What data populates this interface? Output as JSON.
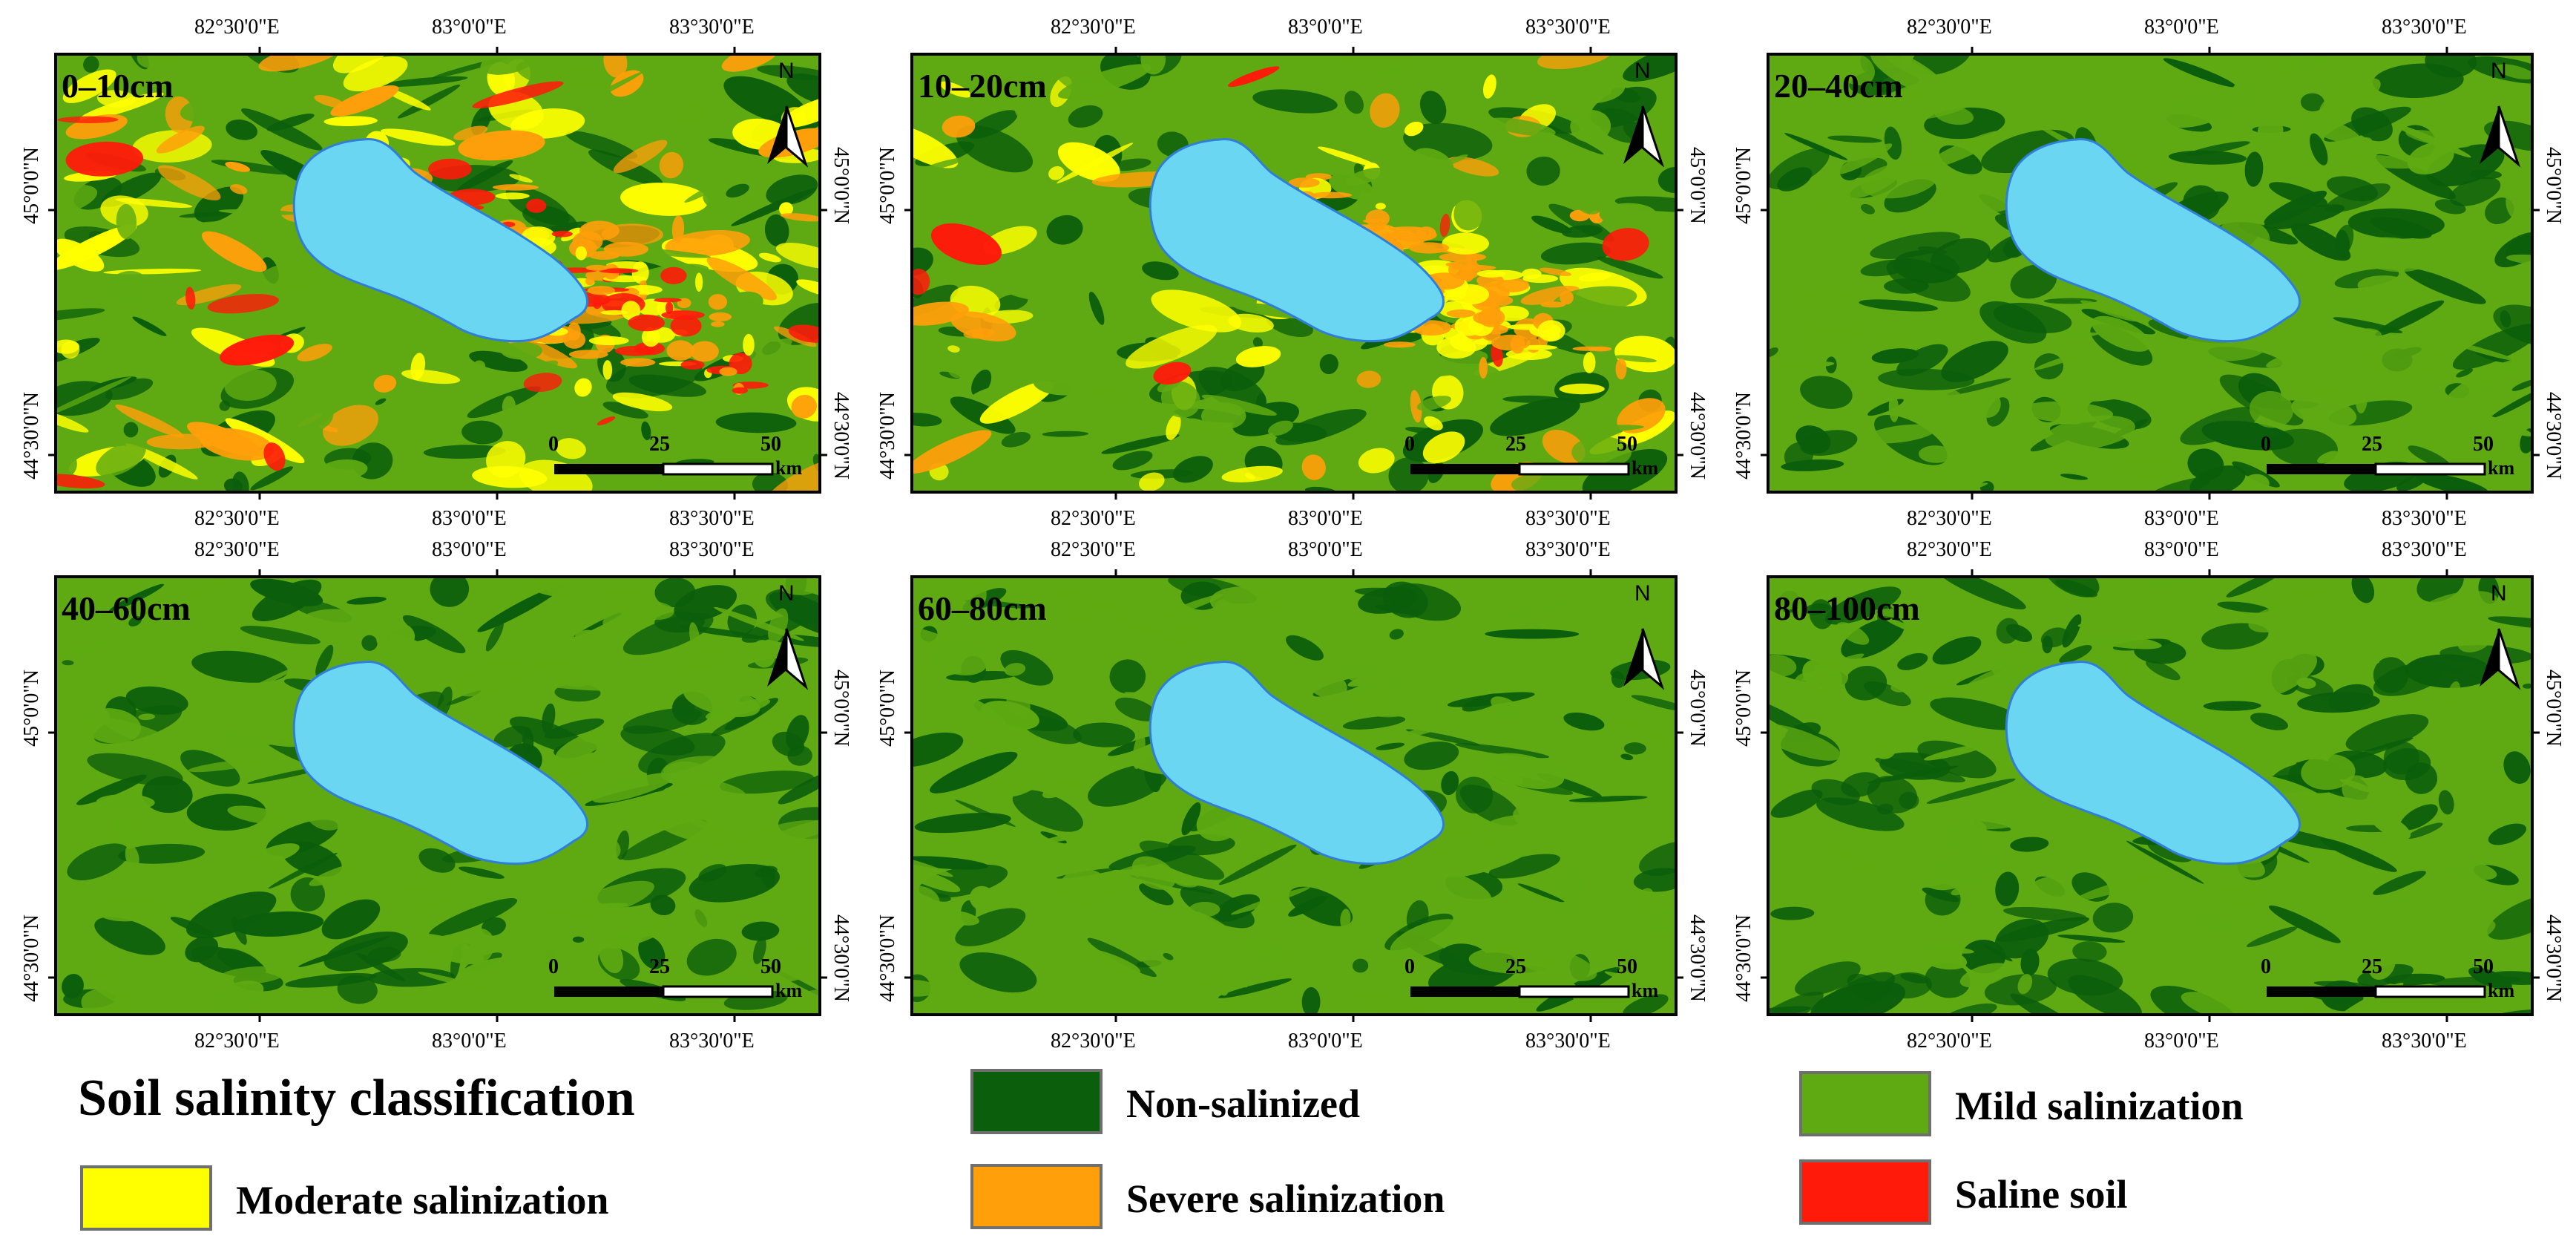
{
  "panels": [
    {
      "label": "0–10cm",
      "scheme": "shallow"
    },
    {
      "label": "10–20cm",
      "scheme": "second"
    },
    {
      "label": "20–40cm",
      "scheme": "green_dark"
    },
    {
      "label": "40–60cm",
      "scheme": "green_mix"
    },
    {
      "label": "60–80cm",
      "scheme": "green_light"
    },
    {
      "label": "80–100cm",
      "scheme": "green_dark"
    }
  ],
  "axes": {
    "top_labels": [
      "82°30'0\"E",
      "83°0'0\"E",
      "83°30'0\"E"
    ],
    "bottom_labels": [
      "82°30'0\"E",
      "83°0'0\"E",
      "83°30'0\"E"
    ],
    "left_labels": [
      "45°0'0\"N",
      "44°30'0\"N"
    ],
    "right_labels": [
      "45°0'0\"N",
      "44°30'0\"N"
    ]
  },
  "north_arrow": "N",
  "scalebar": {
    "ticks": [
      "0",
      "25",
      "50"
    ],
    "unit": "km"
  },
  "legend": {
    "title": "Soil salinity classification",
    "items": [
      {
        "key": "non",
        "label": "Non-salinized",
        "color": "#0b5e0b"
      },
      {
        "key": "mild",
        "label": "Mild salinization",
        "color": "#5faa12"
      },
      {
        "key": "moderate",
        "label": "Moderate salinization",
        "color": "#ffff00"
      },
      {
        "key": "severe",
        "label": "Severe salinization",
        "color": "#ff9f0a"
      },
      {
        "key": "saline",
        "label": "Saline soil",
        "color": "#ff1a0a"
      }
    ]
  },
  "lake_color": "#6ad6f2",
  "lake_outline": "#2f7fd6"
}
